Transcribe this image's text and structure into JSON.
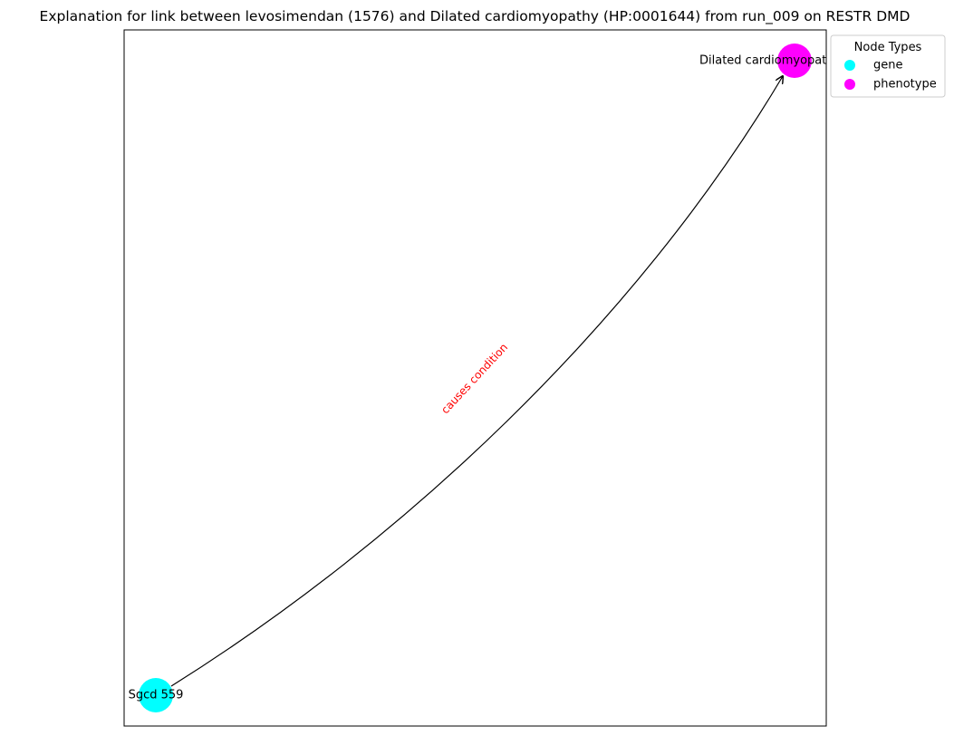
{
  "figure": {
    "title": "Explanation for link between levosimendan (1576) and Dilated cardiomyopathy (HP:0001644) from run_009 on RESTR DMD"
  },
  "graph": {
    "nodes": [
      {
        "id": "sgcd",
        "label": "Sgcd 559",
        "type": "gene"
      },
      {
        "id": "dcm",
        "label": "Dilated cardiomyopathy",
        "type": "phenotype"
      }
    ],
    "edges": [
      {
        "source": "sgcd",
        "target": "dcm",
        "label": "causes condition",
        "label_color": "#ff0000",
        "edge_color": "#000000"
      }
    ]
  },
  "legend": {
    "title": "Node Types",
    "items": [
      {
        "label": "gene",
        "color": "#00ffff"
      },
      {
        "label": "phenotype",
        "color": "#ff00ff"
      }
    ]
  }
}
